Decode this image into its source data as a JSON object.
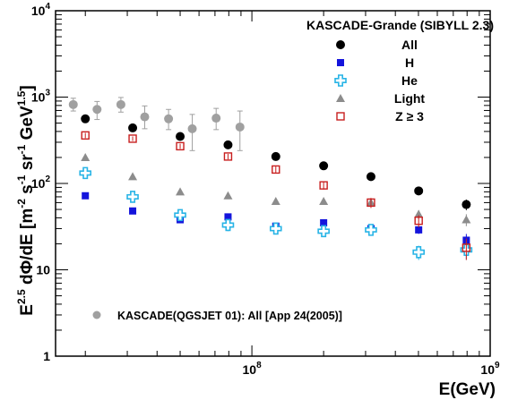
{
  "chart_data": {
    "type": "scatter",
    "legend_title": "KASCADE-Grande (SIBYLL 2.3)",
    "legend_placement": "top-right",
    "xlabel": "E(GeV)",
    "ylabel_parts": {
      "main": "E",
      "exp1": "2.5",
      "mid": " dΦ/dE [m",
      "exp2": "-2",
      "mid2": " s",
      "exp3": "-1",
      "mid3": " sr",
      "exp4": "-1",
      "mid4": " GeV",
      "exp5": "1.5",
      "end": "]"
    },
    "x_scale": "log",
    "y_scale": "log",
    "xlim": [
      15000000,
      1000000000
    ],
    "ylim": [
      1,
      10000
    ],
    "x_ticks": [
      {
        "value": 100000000,
        "base": "10",
        "exp": "8"
      },
      {
        "value": 1000000000,
        "base": "10",
        "exp": "9"
      }
    ],
    "y_ticks": [
      {
        "value": 1,
        "label": "1"
      },
      {
        "value": 10,
        "label": "10"
      },
      {
        "value": 100,
        "base": "10",
        "exp": "2"
      },
      {
        "value": 1000,
        "base": "10",
        "exp": "3"
      },
      {
        "value": 10000,
        "base": "10",
        "exp": "4"
      }
    ],
    "series": [
      {
        "name": "All",
        "marker": "circle",
        "color": "#000000",
        "x": [
          20000000,
          31600000,
          50000000,
          79400000,
          126000000,
          200000000,
          316000000,
          501000000,
          794000000
        ],
        "y": [
          560,
          440,
          350,
          280,
          205,
          160,
          120,
          82,
          57
        ],
        "err": [
          40,
          30,
          25,
          20,
          15,
          12,
          10,
          8,
          8
        ]
      },
      {
        "name": "H",
        "marker": "square",
        "color": "#1414dc",
        "x": [
          20000000,
          31600000,
          50000000,
          79400000,
          126000000,
          200000000,
          316000000,
          501000000,
          794000000
        ],
        "y": [
          72,
          48,
          38,
          41,
          32,
          35,
          30,
          29,
          22
        ],
        "err": [
          4,
          3,
          3,
          3,
          3,
          3,
          3,
          3,
          4
        ]
      },
      {
        "name": "He",
        "marker": "cross",
        "color": "#28b4e6",
        "x": [
          20000000,
          31600000,
          50000000,
          79400000,
          126000000,
          200000000,
          316000000,
          501000000,
          794000000
        ],
        "y": [
          132,
          70,
          43,
          33,
          30,
          28,
          29,
          16,
          17
        ],
        "err": [
          10,
          8,
          6,
          5,
          4,
          4,
          4,
          3,
          4
        ]
      },
      {
        "name": "Light",
        "marker": "triangle",
        "color": "#8c8c8c",
        "x": [
          20000000,
          31600000,
          50000000,
          79400000,
          126000000,
          200000000,
          316000000,
          501000000,
          794000000
        ],
        "y": [
          200,
          120,
          80,
          72,
          62,
          62,
          60,
          44,
          38
        ],
        "err": [
          10,
          8,
          6,
          6,
          5,
          5,
          5,
          5,
          6
        ]
      },
      {
        "name": "Z ≥ 3",
        "marker": "open-square",
        "color": "#c81e1e",
        "x": [
          20000000,
          31600000,
          50000000,
          79400000,
          126000000,
          200000000,
          316000000,
          501000000,
          794000000
        ],
        "y": [
          360,
          330,
          270,
          205,
          145,
          95,
          60,
          37,
          18
        ],
        "err": [
          25,
          20,
          18,
          15,
          12,
          10,
          8,
          6,
          5
        ]
      }
    ],
    "reference": {
      "name": "KASCADE(QGSJET 01): All [App 24(2005)]",
      "marker": "circle",
      "color": "#a0a0a0",
      "x": [
        17800000,
        22400000,
        28200000,
        35500000,
        44700000,
        56200000,
        70800000,
        89100000
      ],
      "y": [
        820,
        720,
        820,
        590,
        560,
        430,
        570,
        450
      ],
      "err_low": [
        130,
        170,
        150,
        160,
        140,
        190,
        150,
        210
      ],
      "err_high": [
        150,
        170,
        170,
        200,
        160,
        200,
        170,
        240
      ]
    }
  }
}
